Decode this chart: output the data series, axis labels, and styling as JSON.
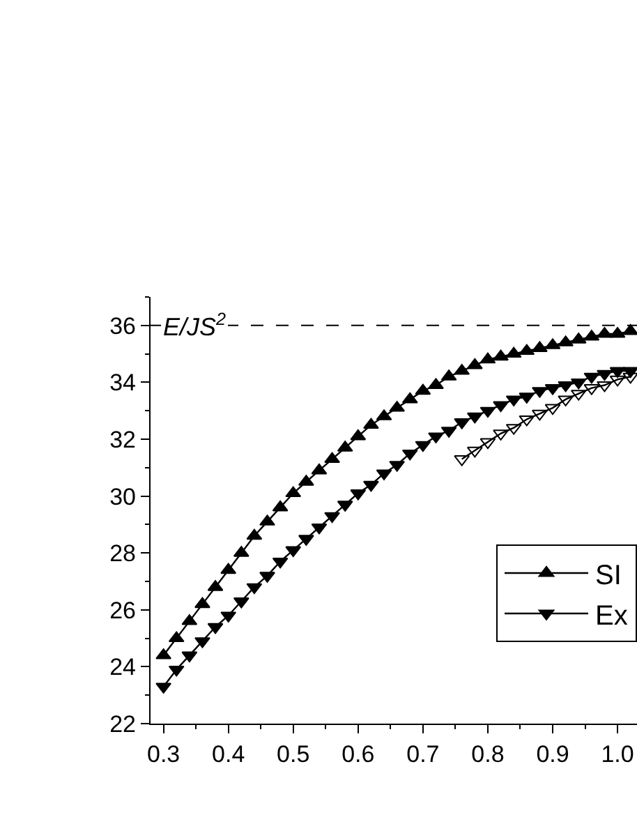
{
  "chart_data": {
    "type": "line",
    "line_style": "solid",
    "legend": "bottom right",
    "xlim": [
      0.28,
      1.03
    ],
    "xticks": [
      0.3,
      0.4,
      0.5,
      0.6,
      0.7,
      0.8,
      0.9,
      {
        "value": 1.0,
        "label": "1.0"
      }
    ],
    "ylim": [
      22,
      37
    ],
    "yticks": [
      22,
      24,
      26,
      28,
      30,
      32,
      34,
      36
    ],
    "ref_lines": [
      {
        "axis": "y",
        "value": 36,
        "label": "E/JS$^{2}$",
        "line_style": "dashed",
        "color": "#000000"
      }
    ],
    "series": [
      {
        "name": "SI",
        "color": "#000000",
        "marker": "triangle-up",
        "x": [
          0.3,
          0.32,
          0.34,
          0.36,
          0.38,
          0.4,
          0.42,
          0.44,
          0.46,
          0.48,
          0.5,
          0.52,
          0.54,
          0.56,
          0.58,
          0.6,
          0.62,
          0.64,
          0.66,
          0.68,
          0.7,
          0.72,
          0.74,
          0.76,
          0.78,
          0.8,
          0.82,
          0.84,
          0.86,
          0.88,
          0.9,
          0.92,
          0.94,
          0.96,
          0.98,
          1.0,
          1.02
        ],
        "values": [
          24.4,
          25.0,
          25.6,
          26.2,
          26.8,
          27.4,
          28.0,
          28.6,
          29.1,
          29.6,
          30.1,
          30.5,
          30.9,
          31.3,
          31.7,
          32.1,
          32.5,
          32.8,
          33.1,
          33.4,
          33.7,
          33.9,
          34.2,
          34.4,
          34.6,
          34.8,
          34.9,
          35.0,
          35.1,
          35.2,
          35.3,
          35.4,
          35.5,
          35.6,
          35.7,
          35.7,
          35.8
        ]
      },
      {
        "name": "Ex",
        "color": "#000000",
        "marker": "triangle-down",
        "x": [
          0.3,
          0.32,
          0.34,
          0.36,
          0.38,
          0.4,
          0.42,
          0.44,
          0.46,
          0.48,
          0.5,
          0.52,
          0.54,
          0.56,
          0.58,
          0.6,
          0.62,
          0.64,
          0.66,
          0.68,
          0.7,
          0.72,
          0.74,
          0.76,
          0.78,
          0.8,
          0.82,
          0.84,
          0.86,
          0.88,
          0.9,
          0.92,
          0.94,
          0.96,
          0.98,
          1.0,
          1.02
        ],
        "values": [
          23.3,
          23.9,
          24.4,
          24.9,
          25.4,
          25.8,
          26.3,
          26.8,
          27.2,
          27.7,
          28.1,
          28.5,
          28.9,
          29.3,
          29.7,
          30.1,
          30.4,
          30.8,
          31.1,
          31.5,
          31.8,
          32.1,
          32.3,
          32.6,
          32.8,
          33.0,
          33.2,
          33.4,
          33.5,
          33.7,
          33.8,
          33.9,
          34.0,
          34.2,
          34.3,
          34.4,
          34.4
        ]
      },
      {
        "color": "#000000",
        "marker": "triangle-down-open",
        "x": [
          0.76,
          0.78,
          0.8,
          0.82,
          0.84,
          0.86,
          0.88,
          0.9,
          0.92,
          0.94,
          0.96,
          0.98,
          1.0,
          1.02
        ],
        "values": [
          31.3,
          31.6,
          31.9,
          32.2,
          32.4,
          32.7,
          32.9,
          33.1,
          33.4,
          33.6,
          33.8,
          33.9,
          34.1,
          34.2
        ]
      }
    ]
  }
}
